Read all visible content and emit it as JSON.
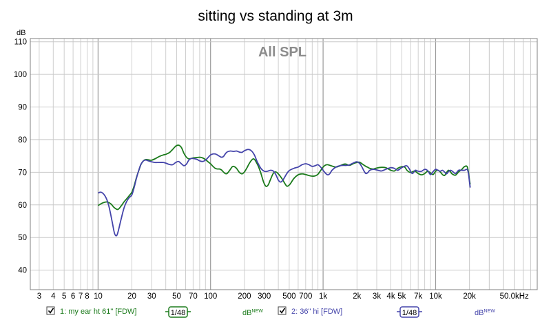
{
  "chart_data": {
    "type": "line",
    "title": "sitting vs standing at 3m",
    "annotation": "All SPL",
    "ylabel": "dB",
    "x_unit": "kHz",
    "x_scale": "log",
    "xlim": [
      2.5,
      80000
    ],
    "ylim": [
      34,
      111
    ],
    "grid": true,
    "y_ticks": [
      {
        "value": 110,
        "label": "110"
      },
      {
        "value": 100,
        "label": "100"
      },
      {
        "value": 90,
        "label": "90"
      },
      {
        "value": 80,
        "label": "80"
      },
      {
        "value": 70,
        "label": "70"
      },
      {
        "value": 60,
        "label": "60"
      },
      {
        "value": 50,
        "label": "50"
      },
      {
        "value": 40,
        "label": "40"
      }
    ],
    "x_ticks": [
      {
        "value": 3,
        "label": "3"
      },
      {
        "value": 4,
        "label": "4"
      },
      {
        "value": 5,
        "label": "5"
      },
      {
        "value": 6,
        "label": "6"
      },
      {
        "value": 7,
        "label": "7"
      },
      {
        "value": 8,
        "label": "8"
      },
      {
        "value": 10,
        "label": "10"
      },
      {
        "value": 20,
        "label": "20"
      },
      {
        "value": 30,
        "label": "30"
      },
      {
        "value": 50,
        "label": "50"
      },
      {
        "value": 70,
        "label": "70"
      },
      {
        "value": 100,
        "label": "100"
      },
      {
        "value": 200,
        "label": "200"
      },
      {
        "value": 300,
        "label": "300"
      },
      {
        "value": 500,
        "label": "500"
      },
      {
        "value": 700,
        "label": "700"
      },
      {
        "value": 1000,
        "label": "1k"
      },
      {
        "value": 2000,
        "label": "2k"
      },
      {
        "value": 3000,
        "label": "3k"
      },
      {
        "value": 4000,
        "label": "4k"
      },
      {
        "value": 5000,
        "label": "5k"
      },
      {
        "value": 7000,
        "label": "7k"
      },
      {
        "value": 10000,
        "label": "10k"
      },
      {
        "value": 20000,
        "label": "20k"
      },
      {
        "value": 50000,
        "label": "50.0kHz"
      }
    ],
    "series": [
      {
        "name": "1: my ear ht 61\" [FDW]",
        "color": "#1a7a1a",
        "smoothing": "1/48",
        "unit_label": "dB",
        "unit_sup": "NEW",
        "points": [
          [
            10,
            59.8
          ],
          [
            11,
            60.6
          ],
          [
            12,
            60.9
          ],
          [
            13,
            60.3
          ],
          [
            14,
            59.1
          ],
          [
            15,
            58.6
          ],
          [
            16,
            59.6
          ],
          [
            17,
            60.9
          ],
          [
            18,
            61.9
          ],
          [
            19,
            62.9
          ],
          [
            20,
            63.9
          ],
          [
            21,
            66.0
          ],
          [
            22,
            68.5
          ],
          [
            23,
            70.5
          ],
          [
            24,
            72.3
          ],
          [
            25,
            73.3
          ],
          [
            26,
            73.8
          ],
          [
            27,
            73.9
          ],
          [
            28,
            73.8
          ],
          [
            29,
            73.7
          ],
          [
            30,
            73.7
          ],
          [
            32,
            74.1
          ],
          [
            34,
            74.6
          ],
          [
            36,
            75.0
          ],
          [
            38,
            75.3
          ],
          [
            40,
            75.5
          ],
          [
            43,
            76.0
          ],
          [
            46,
            77.0
          ],
          [
            49,
            78.0
          ],
          [
            52,
            78.3
          ],
          [
            55,
            77.6
          ],
          [
            58,
            75.8
          ],
          [
            61,
            74.6
          ],
          [
            64,
            74.1
          ],
          [
            67,
            74.2
          ],
          [
            70,
            74.4
          ],
          [
            75,
            74.5
          ],
          [
            80,
            74.6
          ],
          [
            85,
            74.4
          ],
          [
            90,
            73.9
          ],
          [
            95,
            73.2
          ],
          [
            100,
            72.6
          ],
          [
            105,
            71.8
          ],
          [
            110,
            71.2
          ],
          [
            115,
            71.0
          ],
          [
            120,
            71.0
          ],
          [
            125,
            70.7
          ],
          [
            130,
            70.1
          ],
          [
            135,
            69.6
          ],
          [
            140,
            69.6
          ],
          [
            145,
            70.2
          ],
          [
            150,
            70.9
          ],
          [
            155,
            71.6
          ],
          [
            160,
            71.8
          ],
          [
            170,
            71.2
          ],
          [
            180,
            70.0
          ],
          [
            190,
            69.5
          ],
          [
            200,
            70.1
          ],
          [
            210,
            71.3
          ],
          [
            220,
            72.6
          ],
          [
            230,
            73.6
          ],
          [
            240,
            74.1
          ],
          [
            250,
            73.6
          ],
          [
            265,
            71.9
          ],
          [
            280,
            69.7
          ],
          [
            295,
            67.1
          ],
          [
            310,
            65.7
          ],
          [
            325,
            66.1
          ],
          [
            340,
            67.7
          ],
          [
            360,
            69.6
          ],
          [
            380,
            70.1
          ],
          [
            400,
            69.5
          ],
          [
            430,
            68.1
          ],
          [
            460,
            66.4
          ],
          [
            480,
            65.7
          ],
          [
            510,
            66.4
          ],
          [
            550,
            68.1
          ],
          [
            600,
            69.2
          ],
          [
            650,
            69.5
          ],
          [
            700,
            69.3
          ],
          [
            750,
            69.0
          ],
          [
            800,
            68.8
          ],
          [
            850,
            68.9
          ],
          [
            900,
            69.4
          ],
          [
            950,
            70.5
          ],
          [
            1000,
            71.6
          ],
          [
            1050,
            72.2
          ],
          [
            1100,
            72.3
          ],
          [
            1200,
            71.9
          ],
          [
            1300,
            71.6
          ],
          [
            1400,
            71.9
          ],
          [
            1500,
            72.4
          ],
          [
            1600,
            72.5
          ],
          [
            1700,
            72.1
          ],
          [
            1800,
            72.4
          ],
          [
            1900,
            72.8
          ],
          [
            2000,
            73.0
          ],
          [
            2100,
            73.1
          ],
          [
            2200,
            72.7
          ],
          [
            2300,
            72.2
          ],
          [
            2400,
            71.8
          ],
          [
            2500,
            71.5
          ],
          [
            2600,
            71.2
          ],
          [
            2800,
            71.0
          ],
          [
            3000,
            71.3
          ],
          [
            3300,
            71.5
          ],
          [
            3600,
            71.4
          ],
          [
            4000,
            70.6
          ],
          [
            4300,
            70.4
          ],
          [
            4600,
            71.2
          ],
          [
            5000,
            71.7
          ],
          [
            5300,
            71.6
          ],
          [
            5600,
            70.5
          ],
          [
            6000,
            69.9
          ],
          [
            6500,
            70.4
          ],
          [
            7000,
            69.6
          ],
          [
            7500,
            69.2
          ],
          [
            8000,
            69.6
          ],
          [
            8500,
            70.3
          ],
          [
            9000,
            69.8
          ],
          [
            9500,
            69.3
          ],
          [
            10000,
            70.3
          ],
          [
            10500,
            70.6
          ],
          [
            11000,
            70.1
          ],
          [
            11500,
            69.3
          ],
          [
            12000,
            69.0
          ],
          [
            12500,
            69.9
          ],
          [
            13000,
            70.6
          ],
          [
            13500,
            70.2
          ],
          [
            14000,
            69.5
          ],
          [
            15000,
            69.1
          ],
          [
            16000,
            70.1
          ],
          [
            17000,
            70.8
          ],
          [
            18000,
            71.7
          ],
          [
            19000,
            71.8
          ],
          [
            19500,
            70.5
          ],
          [
            20000,
            67.6
          ],
          [
            20300,
            66.3
          ]
        ]
      },
      {
        "name": "2: 36\" hi [FDW]",
        "color": "#4444aa",
        "smoothing": "1/48",
        "unit_label": "dB",
        "unit_sup": "NEW",
        "points": [
          [
            10,
            63.6
          ],
          [
            10.5,
            63.9
          ],
          [
            11,
            63.6
          ],
          [
            11.5,
            62.8
          ],
          [
            12,
            61.5
          ],
          [
            12.5,
            59.5
          ],
          [
            13,
            56.8
          ],
          [
            13.5,
            53.9
          ],
          [
            14,
            51.3
          ],
          [
            14.5,
            50.5
          ],
          [
            15,
            51.5
          ],
          [
            16,
            55.5
          ],
          [
            17,
            59.0
          ],
          [
            18,
            61.1
          ],
          [
            19,
            62.3
          ],
          [
            20,
            63.1
          ],
          [
            21,
            65.5
          ],
          [
            22,
            68.3
          ],
          [
            23,
            70.6
          ],
          [
            24,
            72.4
          ],
          [
            25,
            73.3
          ],
          [
            26,
            73.7
          ],
          [
            27,
            73.7
          ],
          [
            28,
            73.5
          ],
          [
            30,
            73.2
          ],
          [
            32,
            73.0
          ],
          [
            35,
            73.0
          ],
          [
            38,
            73.0
          ],
          [
            40,
            72.8
          ],
          [
            43,
            72.4
          ],
          [
            46,
            72.3
          ],
          [
            49,
            73.0
          ],
          [
            52,
            73.3
          ],
          [
            55,
            72.6
          ],
          [
            58,
            72.0
          ],
          [
            61,
            72.5
          ],
          [
            64,
            73.7
          ],
          [
            67,
            74.2
          ],
          [
            70,
            74.2
          ],
          [
            75,
            74.0
          ],
          [
            80,
            73.5
          ],
          [
            85,
            73.3
          ],
          [
            90,
            73.7
          ],
          [
            95,
            74.5
          ],
          [
            100,
            75.3
          ],
          [
            105,
            75.6
          ],
          [
            110,
            75.6
          ],
          [
            115,
            75.3
          ],
          [
            120,
            74.9
          ],
          [
            125,
            74.6
          ],
          [
            130,
            74.8
          ],
          [
            135,
            75.6
          ],
          [
            140,
            76.2
          ],
          [
            150,
            76.5
          ],
          [
            160,
            76.4
          ],
          [
            170,
            76.5
          ],
          [
            180,
            76.2
          ],
          [
            190,
            76.1
          ],
          [
            200,
            76.6
          ],
          [
            215,
            77.0
          ],
          [
            230,
            76.6
          ],
          [
            245,
            75.3
          ],
          [
            260,
            73.2
          ],
          [
            280,
            71.2
          ],
          [
            300,
            70.3
          ],
          [
            320,
            70.3
          ],
          [
            340,
            70.6
          ],
          [
            360,
            70.4
          ],
          [
            380,
            69.3
          ],
          [
            400,
            67.6
          ],
          [
            420,
            67.0
          ],
          [
            440,
            67.6
          ],
          [
            470,
            69.3
          ],
          [
            500,
            70.5
          ],
          [
            550,
            71.2
          ],
          [
            600,
            71.6
          ],
          [
            650,
            72.3
          ],
          [
            700,
            72.6
          ],
          [
            750,
            72.3
          ],
          [
            800,
            71.8
          ],
          [
            850,
            72.0
          ],
          [
            900,
            72.3
          ],
          [
            950,
            71.6
          ],
          [
            1000,
            70.6
          ],
          [
            1050,
            69.7
          ],
          [
            1100,
            69.2
          ],
          [
            1150,
            69.6
          ],
          [
            1200,
            70.6
          ],
          [
            1300,
            71.6
          ],
          [
            1400,
            72.0
          ],
          [
            1500,
            72.1
          ],
          [
            1600,
            72.1
          ],
          [
            1700,
            72.2
          ],
          [
            1800,
            72.6
          ],
          [
            1900,
            73.0
          ],
          [
            2000,
            73.2
          ],
          [
            2100,
            72.8
          ],
          [
            2200,
            71.8
          ],
          [
            2300,
            70.5
          ],
          [
            2400,
            69.6
          ],
          [
            2500,
            69.9
          ],
          [
            2600,
            70.6
          ],
          [
            2800,
            70.9
          ],
          [
            3000,
            70.7
          ],
          [
            3300,
            70.4
          ],
          [
            3600,
            70.9
          ],
          [
            4000,
            71.4
          ],
          [
            4300,
            71.2
          ],
          [
            4600,
            70.6
          ],
          [
            5000,
            71.4
          ],
          [
            5500,
            72.0
          ],
          [
            5800,
            71.2
          ],
          [
            6200,
            69.6
          ],
          [
            6600,
            70.6
          ],
          [
            7000,
            70.3
          ],
          [
            7500,
            70.3
          ],
          [
            8000,
            70.9
          ],
          [
            8500,
            70.5
          ],
          [
            9000,
            69.3
          ],
          [
            9500,
            70.2
          ],
          [
            10000,
            70.9
          ],
          [
            10500,
            70.6
          ],
          [
            11000,
            70.3
          ],
          [
            11500,
            70.6
          ],
          [
            12000,
            70.1
          ],
          [
            12500,
            69.5
          ],
          [
            13000,
            70.2
          ],
          [
            13500,
            70.6
          ],
          [
            14000,
            70.4
          ],
          [
            15000,
            69.6
          ],
          [
            16000,
            70.6
          ],
          [
            17000,
            70.6
          ],
          [
            18000,
            70.6
          ],
          [
            19000,
            70.9
          ],
          [
            19500,
            70.0
          ],
          [
            20000,
            67.1
          ],
          [
            20300,
            65.3
          ]
        ]
      }
    ]
  }
}
